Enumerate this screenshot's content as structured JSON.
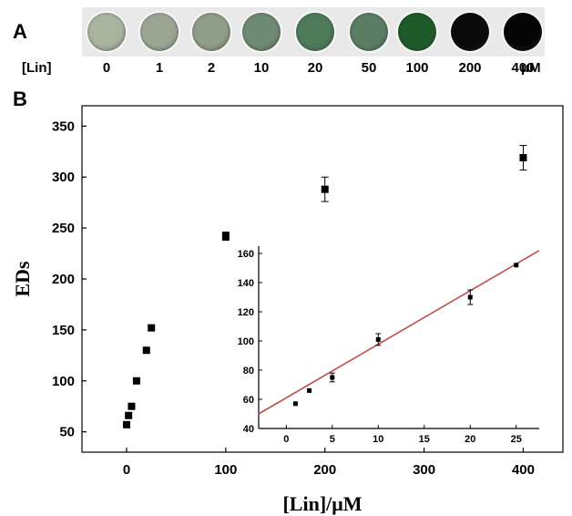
{
  "panel_labels": {
    "a": "A",
    "b": "B"
  },
  "wells": {
    "row_label": "[Lin]",
    "unit": "μM",
    "items": [
      {
        "label": "0",
        "color": "#a9b49e"
      },
      {
        "label": "1",
        "color": "#9aa592"
      },
      {
        "label": "2",
        "color": "#8f9c88"
      },
      {
        "label": "10",
        "color": "#6f8a72"
      },
      {
        "label": "20",
        "color": "#4f7a5a"
      },
      {
        "label": "50",
        "color": "#5b7d63"
      },
      {
        "label": "100",
        "color": "#1f5a2a"
      },
      {
        "label": "200",
        "color": "#0a0a0a"
      },
      {
        "label": "400",
        "color": "#050505"
      }
    ]
  },
  "chart_data": [
    {
      "type": "scatter",
      "xlabel": "[Lin]/μM",
      "ylabel": "EDs",
      "xlim": [
        -45,
        440
      ],
      "ylim": [
        30,
        370
      ],
      "xticks": [
        0,
        100,
        200,
        300,
        400
      ],
      "yticks": [
        50,
        100,
        150,
        200,
        250,
        300,
        350
      ],
      "series": [
        {
          "marker": "square",
          "color": "#000000",
          "points": [
            {
              "x": 0,
              "y": 57,
              "err": 0
            },
            {
              "x": 2,
              "y": 66,
              "err": 0
            },
            {
              "x": 5,
              "y": 75,
              "err": 0
            },
            {
              "x": 10,
              "y": 100,
              "err": 0
            },
            {
              "x": 20,
              "y": 130,
              "err": 2
            },
            {
              "x": 25,
              "y": 152,
              "err": 0
            },
            {
              "x": 100,
              "y": 242,
              "err": 4
            },
            {
              "x": 200,
              "y": 288,
              "err": 12
            },
            {
              "x": 400,
              "y": 319,
              "err": 12
            }
          ]
        }
      ]
    },
    {
      "type": "scatter",
      "xlim": [
        -3,
        27.5
      ],
      "ylim": [
        40,
        165
      ],
      "xticks": [
        0,
        5,
        10,
        15,
        20,
        25
      ],
      "yticks": [
        40,
        60,
        80,
        100,
        120,
        140,
        160
      ],
      "fit_line": {
        "x0": -3,
        "y0": 50,
        "x1": 27.5,
        "y1": 162,
        "color": "#c0504d"
      },
      "series": [
        {
          "marker": "square",
          "color": "#000000",
          "points": [
            {
              "x": 1,
              "y": 57,
              "err": 0
            },
            {
              "x": 2.5,
              "y": 66,
              "err": 0
            },
            {
              "x": 5,
              "y": 75,
              "err": 3
            },
            {
              "x": 10,
              "y": 101,
              "err": 4
            },
            {
              "x": 20,
              "y": 130,
              "err": 5
            },
            {
              "x": 25,
              "y": 152,
              "err": 0
            }
          ]
        }
      ]
    }
  ]
}
